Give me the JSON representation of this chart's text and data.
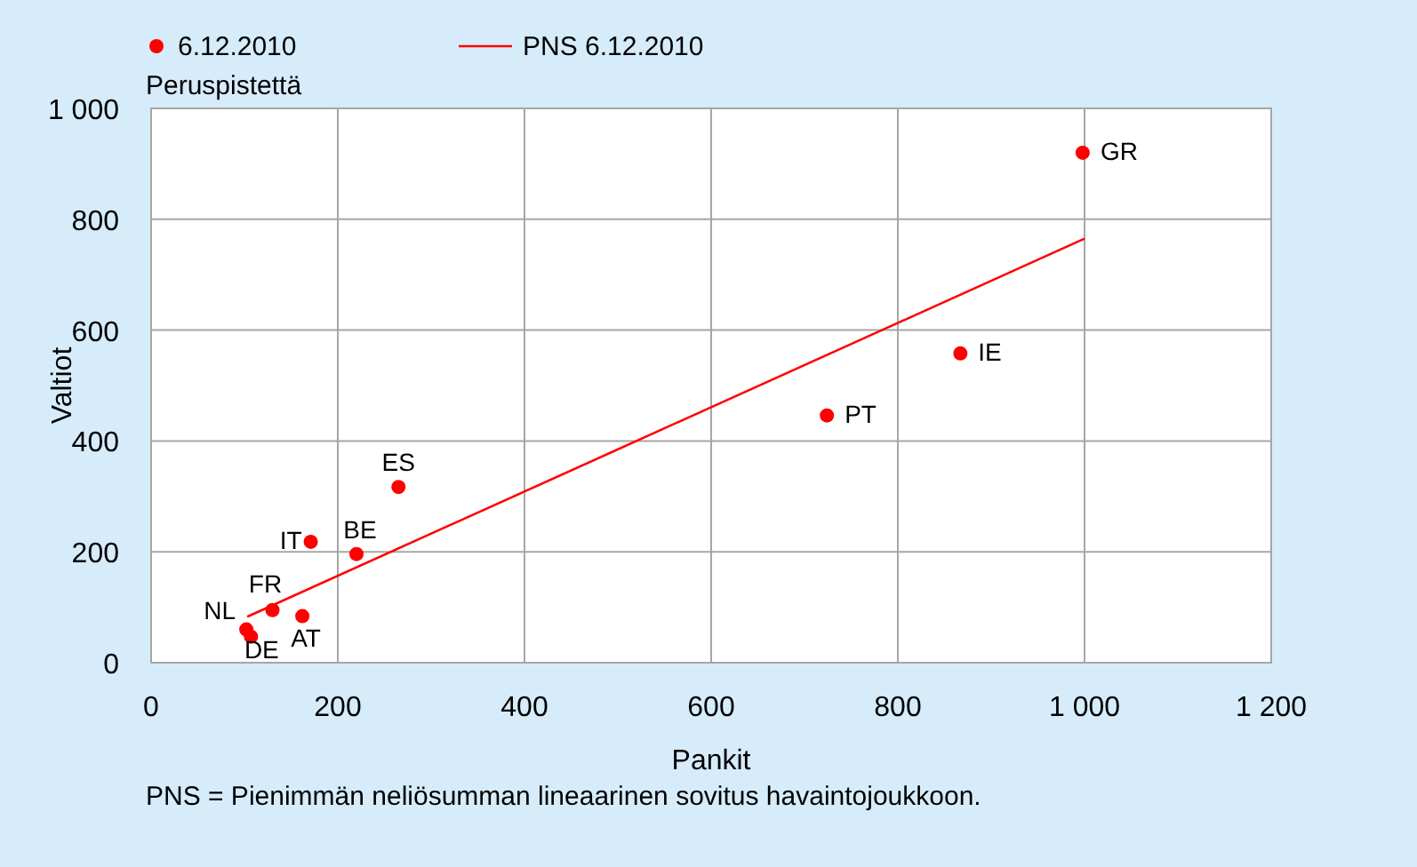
{
  "chart_data": {
    "type": "scatter",
    "xlabel": "Pankit",
    "ylabel": "Valtiot",
    "xlim": [
      0,
      1200
    ],
    "ylim": [
      0,
      1000
    ],
    "xticks": [
      0,
      200,
      400,
      600,
      800,
      {
        "value": 1000,
        "label": "1 000"
      },
      {
        "value": 1200,
        "label": "1 200"
      }
    ],
    "yticks": [
      0,
      200,
      400,
      600,
      800,
      {
        "value": 1000,
        "label": "1 000"
      }
    ],
    "grid": true,
    "legend": "top left",
    "series": [
      {
        "name": "6.12.2010",
        "color": "#ff0000",
        "marker": "circle",
        "x": [
          998,
          867,
          724,
          265,
          220,
          171,
          130,
          162,
          102,
          107
        ],
        "values": [
          920,
          558,
          446,
          317,
          196,
          218,
          95,
          84,
          60,
          47
        ]
      },
      {
        "name": "PNS 6.12.2010",
        "type": "line",
        "color": "#ff0000",
        "line_style": "solid",
        "x": [
          103,
          1000
        ],
        "values": [
          83,
          765
        ]
      }
    ],
    "annotations": [
      "Peruspistettä",
      "PNS = Pienimmän neliösumman lineaarinen sovitus havaintojoukkoon.",
      {
        "text": "GR",
        "x": 998,
        "y": 920
      },
      {
        "text": "IE",
        "x": 867,
        "y": 558
      },
      {
        "text": "PT",
        "x": 724,
        "y": 446
      },
      {
        "text": "ES",
        "x": 265,
        "y": 317
      },
      {
        "text": "BE",
        "x": 220,
        "y": 196
      },
      {
        "text": "IT",
        "x": 171,
        "y": 218
      },
      {
        "text": "FR",
        "x": 130,
        "y": 95
      },
      {
        "text": "AT",
        "x": 162,
        "y": 84
      },
      {
        "text": "NL",
        "x": 102,
        "y": 60
      },
      {
        "text": "DE",
        "x": 107,
        "y": 47
      }
    ]
  }
}
